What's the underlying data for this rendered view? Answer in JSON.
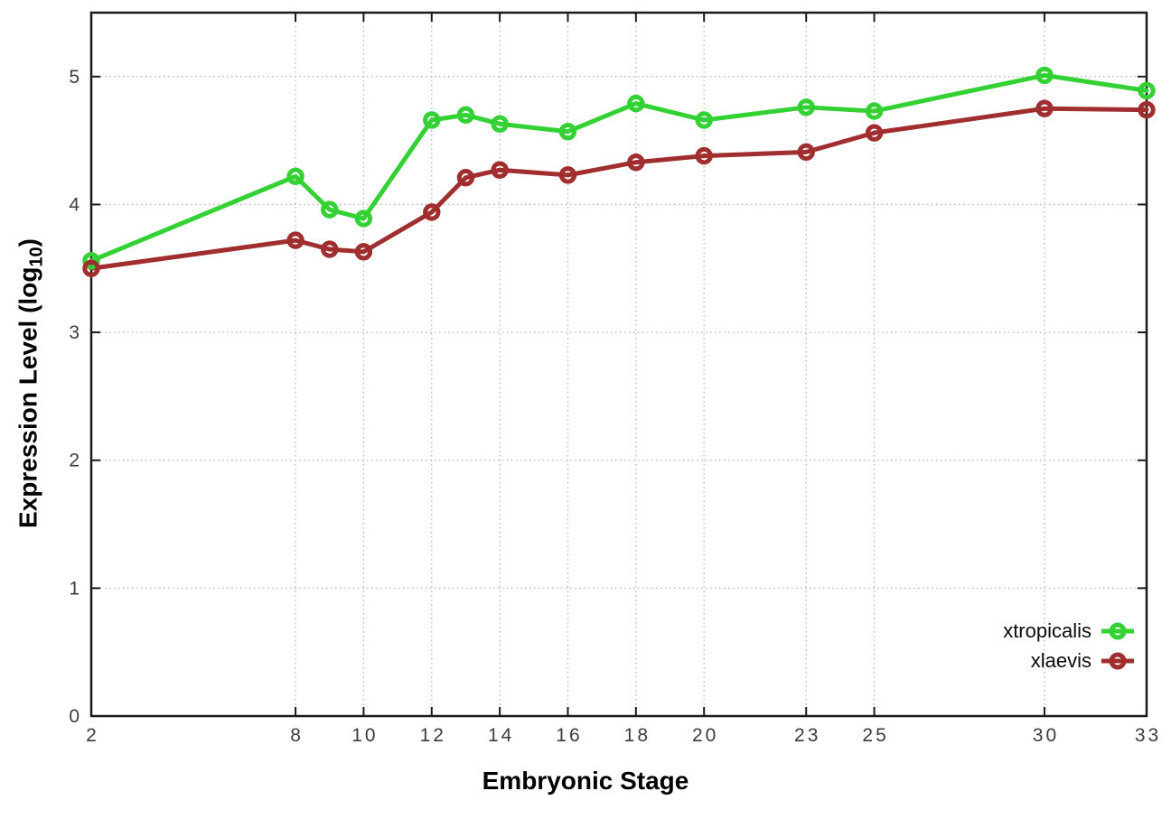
{
  "chart_data": {
    "type": "line",
    "title": "",
    "xlabel": "Embryonic Stage",
    "ylabel_prefix": "Expression Level (log",
    "ylabel_sub": "10",
    "ylabel_suffix": ")",
    "xlim": [
      2,
      33
    ],
    "ylim": [
      0,
      5.5
    ],
    "x_ticks": [
      2,
      8,
      10,
      12,
      14,
      16,
      18,
      20,
      23,
      25,
      30,
      33
    ],
    "y_ticks": [
      0,
      1,
      2,
      3,
      4,
      5
    ],
    "grid": true,
    "legend_position": "bottom-right",
    "x": [
      2,
      8,
      9,
      10,
      12,
      13,
      14,
      16,
      18,
      20,
      23,
      25,
      30,
      33
    ],
    "series": [
      {
        "name": "xtropicalis",
        "color": "#33d133",
        "values": [
          3.56,
          4.22,
          3.96,
          3.89,
          4.66,
          4.7,
          4.63,
          4.57,
          4.79,
          4.66,
          4.76,
          4.73,
          5.01,
          4.89
        ]
      },
      {
        "name": "xlaevis",
        "color": "#a02e2e",
        "values": [
          3.5,
          3.72,
          3.65,
          3.63,
          3.94,
          4.21,
          4.27,
          4.23,
          4.33,
          4.38,
          4.41,
          4.56,
          4.75,
          4.74
        ]
      }
    ],
    "style": {
      "grid_color": "#b5b5b5",
      "border_color": "#1a1a1a",
      "tick_label_color": "#3c3c3c"
    }
  }
}
